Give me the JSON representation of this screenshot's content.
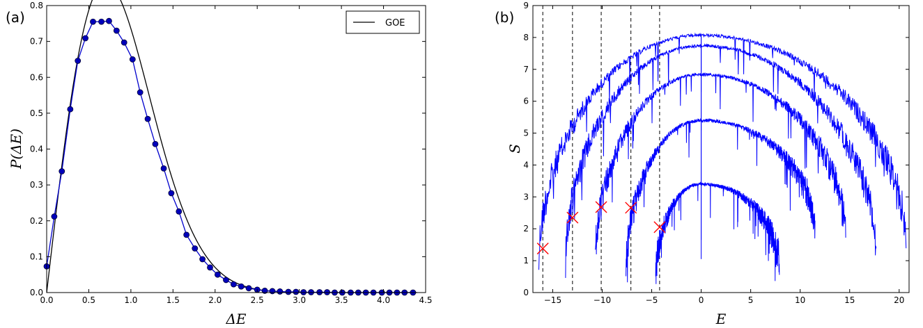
{
  "chart_data": [
    {
      "panel_label": "(a)",
      "type": "line",
      "xlabel": "ΔE",
      "ylabel": "P(ΔE)",
      "xlim": [
        0.0,
        4.5
      ],
      "ylim": [
        0.0,
        0.8
      ],
      "xticks": [
        "0.0",
        "0.5",
        "1.0",
        "1.5",
        "2.0",
        "2.5",
        "3.0",
        "3.5",
        "4.0",
        "4.5"
      ],
      "yticks": [
        "0.0",
        "0.1",
        "0.2",
        "0.3",
        "0.4",
        "0.5",
        "0.6",
        "0.7",
        "0.8"
      ],
      "legend": {
        "position": "top-right",
        "entries": [
          "GOE"
        ]
      },
      "series": [
        {
          "name": "GOE",
          "color": "#000000",
          "marker": "none",
          "function": "GOE Wigner surmise (π/2)·x·exp(−π x²/4), mean spacing 0.88",
          "x": [
            0.0,
            0.1,
            0.2,
            0.3,
            0.4,
            0.5,
            0.6,
            0.7,
            0.75,
            0.8,
            0.9,
            1.0,
            1.1,
            1.2,
            1.3,
            1.4,
            1.5,
            1.6,
            1.7,
            1.8,
            1.9,
            2.0,
            2.2,
            2.4,
            2.6,
            2.8,
            3.0,
            3.5,
            4.0,
            4.4
          ],
          "y": [
            0.0,
            0.201,
            0.387,
            0.545,
            0.663,
            0.736,
            0.762,
            0.747,
            0.758,
            0.727,
            0.68,
            0.63,
            0.574,
            0.513,
            0.452,
            0.392,
            0.334,
            0.281,
            0.233,
            0.19,
            0.153,
            0.121,
            0.074,
            0.043,
            0.023,
            0.012,
            0.006,
            0.001,
            0.0,
            0.0
          ]
        },
        {
          "name": "",
          "color": "#0000cc",
          "marker": "circle",
          "x": [
            0.0,
            0.09,
            0.18,
            0.28,
            0.37,
            0.46,
            0.55,
            0.65,
            0.74,
            0.83,
            0.92,
            1.02,
            1.11,
            1.2,
            1.29,
            1.39,
            1.48,
            1.57,
            1.66,
            1.76,
            1.85,
            1.94,
            2.03,
            2.13,
            2.22,
            2.31,
            2.4,
            2.5,
            2.59,
            2.68,
            2.77,
            2.87,
            2.96,
            3.05,
            3.14,
            3.24,
            3.33,
            3.42,
            3.51,
            3.61,
            3.7,
            3.79,
            3.88,
            3.98,
            4.07,
            4.16,
            4.25,
            4.35
          ],
          "y": [
            0.073,
            0.212,
            0.338,
            0.511,
            0.646,
            0.709,
            0.755,
            0.755,
            0.757,
            0.73,
            0.697,
            0.65,
            0.558,
            0.484,
            0.414,
            0.346,
            0.277,
            0.226,
            0.161,
            0.123,
            0.093,
            0.07,
            0.05,
            0.035,
            0.023,
            0.017,
            0.012,
            0.008,
            0.005,
            0.004,
            0.003,
            0.002,
            0.002,
            0.001,
            0.001,
            0.001,
            0.001,
            0.0,
            0.0,
            0.0,
            0.0,
            0.0,
            0.0,
            0.0,
            0.0,
            0.0,
            0.0,
            0.0
          ]
        }
      ]
    },
    {
      "panel_label": "(b)",
      "type": "line",
      "xlabel": "E",
      "ylabel": "S",
      "xlim": [
        -17.0,
        21.0
      ],
      "ylim": [
        0,
        9
      ],
      "xticks": [
        "−15",
        "−10",
        "−5",
        "0",
        "5",
        "10",
        "15",
        "20"
      ],
      "xtick_values": [
        -15,
        -10,
        -5,
        0,
        5,
        10,
        15,
        20
      ],
      "yticks": [
        "0",
        "1",
        "2",
        "3",
        "4",
        "5",
        "6",
        "7",
        "8",
        "9"
      ],
      "vlines_dashed": [
        -16.0,
        -13.0,
        -10.1,
        -7.1,
        -4.2
      ],
      "markers_x": {
        "color": "#ff0000",
        "points": [
          {
            "x": -16.0,
            "y": 1.38
          },
          {
            "x": -13.0,
            "y": 2.35
          },
          {
            "x": -10.1,
            "y": 2.68
          },
          {
            "x": -7.1,
            "y": 2.66
          },
          {
            "x": -4.2,
            "y": 2.05
          }
        ]
      },
      "series": [
        {
          "name": "",
          "color": "#0000ff",
          "xmin": -16.4,
          "xmax": 20.7,
          "peak": 8.12,
          "edge_left": 1.5,
          "edge_right": 2.0
        },
        {
          "name": "",
          "color": "#0000ff",
          "xmin": -13.7,
          "xmax": 17.7,
          "peak": 7.79,
          "edge_left": 1.45,
          "edge_right": 1.65
        },
        {
          "name": "",
          "color": "#0000ff",
          "xmin": -10.7,
          "xmax": 14.6,
          "peak": 6.89,
          "edge_left": 1.5,
          "edge_right": 2.25
        },
        {
          "name": "",
          "color": "#0000ff",
          "xmin": -7.6,
          "xmax": 11.5,
          "peak": 5.45,
          "edge_left": 1.15,
          "edge_right": 2.5
        },
        {
          "name": "",
          "color": "#0000ff",
          "xmin": -4.6,
          "xmax": 7.9,
          "peak": 3.45,
          "edge_left": 1.0,
          "edge_right": 1.35
        }
      ]
    }
  ]
}
